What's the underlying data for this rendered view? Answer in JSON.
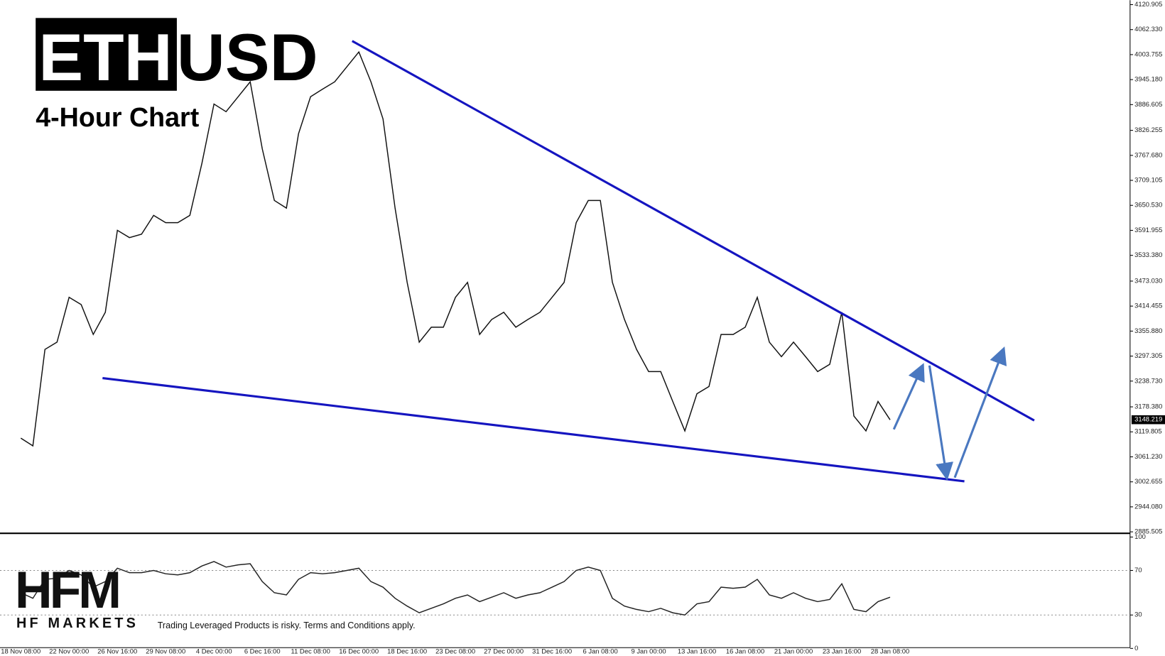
{
  "chart_data": [
    {
      "type": "line",
      "symbol": {
        "base": "ETH",
        "quote": "USD"
      },
      "subtitle": "4-Hour Chart",
      "categories": [
        "18 Nov 08:00",
        null,
        null,
        null,
        "22 Nov 00:00",
        null,
        null,
        null,
        "26 Nov 16:00",
        null,
        null,
        null,
        "29 Nov 08:00",
        null,
        null,
        null,
        "4 Dec 00:00",
        null,
        null,
        null,
        "6 Dec 16:00",
        null,
        null,
        null,
        "11 Dec 08:00",
        null,
        null,
        null,
        "16 Dec 00:00",
        null,
        null,
        null,
        "18 Dec 16:00",
        null,
        null,
        null,
        "23 Dec 08:00",
        null,
        null,
        null,
        "27 Dec 00:00",
        null,
        null,
        null,
        "31 Dec 16:00",
        null,
        null,
        null,
        "6 Jan 08:00",
        null,
        null,
        null,
        "9 Jan 00:00",
        null,
        null,
        null,
        "13 Jan 16:00",
        null,
        null,
        null,
        "16 Jan 08:00",
        null,
        null,
        null,
        "21 Jan 00:00",
        null,
        null,
        null,
        "23 Jan 16:00",
        null,
        null,
        null,
        "28 Jan 08:00"
      ],
      "values": [
        3105,
        3087,
        3313,
        3330,
        3435,
        3418,
        3348,
        3400,
        3592,
        3575,
        3583,
        3627,
        3610,
        3610,
        3627,
        3749,
        3888,
        3870,
        3905,
        3940,
        3783,
        3662,
        3644,
        3818,
        3905,
        3923,
        3940,
        3975,
        4010,
        3940,
        3853,
        3644,
        3470,
        3330,
        3365,
        3365,
        3435,
        3470,
        3348,
        3383,
        3400,
        3365,
        3383,
        3400,
        3435,
        3470,
        3610,
        3662,
        3662,
        3470,
        3383,
        3313,
        3261,
        3261,
        3191,
        3122,
        3209,
        3226,
        3348,
        3348,
        3365,
        3435,
        3330,
        3296,
        3330,
        3296,
        3261,
        3278,
        3400,
        3157,
        3122,
        3191,
        3148
      ],
      "color": "#111111",
      "last_value": 3148.219,
      "ylim": [
        2885.505,
        4120.905
      ],
      "yticks": [
        4120.905,
        {
          "value": 4062.33,
          "label": "4062.330"
        },
        4003.755,
        {
          "value": 3945.18,
          "label": "3945.180"
        },
        3886.605,
        3826.255,
        {
          "value": 3767.68,
          "label": "3767.680"
        },
        3709.105,
        {
          "value": 3650.53,
          "label": "3650.530"
        },
        3591.955,
        {
          "value": 3533.38,
          "label": "3533.380"
        },
        {
          "value": 3473.03,
          "label": "3473.030"
        },
        3414.455,
        {
          "value": 3355.88,
          "label": "3355.880"
        },
        3297.305,
        {
          "value": 3238.73,
          "label": "3238.730"
        },
        {
          "value": 3178.38,
          "label": "3178.380"
        },
        3119.805,
        {
          "value": 3061.23,
          "label": "3061.230"
        },
        3002.655,
        {
          "value": 2944.08,
          "label": "2944.080"
        },
        2885.505
      ],
      "grid": false
    },
    {
      "type": "line",
      "values": [
        50,
        45,
        62,
        63,
        70,
        66,
        55,
        60,
        72,
        68,
        68,
        70,
        67,
        66,
        68,
        74,
        78,
        73,
        75,
        76,
        60,
        50,
        48,
        62,
        68,
        67,
        68,
        70,
        72,
        60,
        55,
        45,
        38,
        32,
        36,
        40,
        45,
        48,
        42,
        46,
        50,
        45,
        48,
        50,
        55,
        60,
        70,
        73,
        70,
        45,
        38,
        35,
        33,
        36,
        32,
        30,
        40,
        42,
        55,
        54,
        55,
        62,
        48,
        45,
        50,
        45,
        42,
        44,
        58,
        35,
        33,
        42,
        46
      ],
      "color": "#222222",
      "ylim": [
        0,
        100
      ],
      "yticks": [
        0,
        30,
        70,
        100
      ],
      "grid": true
    }
  ],
  "brand": {
    "logo": "HFM",
    "name": "HF MARKETS",
    "disclaimer": "Trading Leveraged Products is risky. Terms and Conditions apply."
  }
}
